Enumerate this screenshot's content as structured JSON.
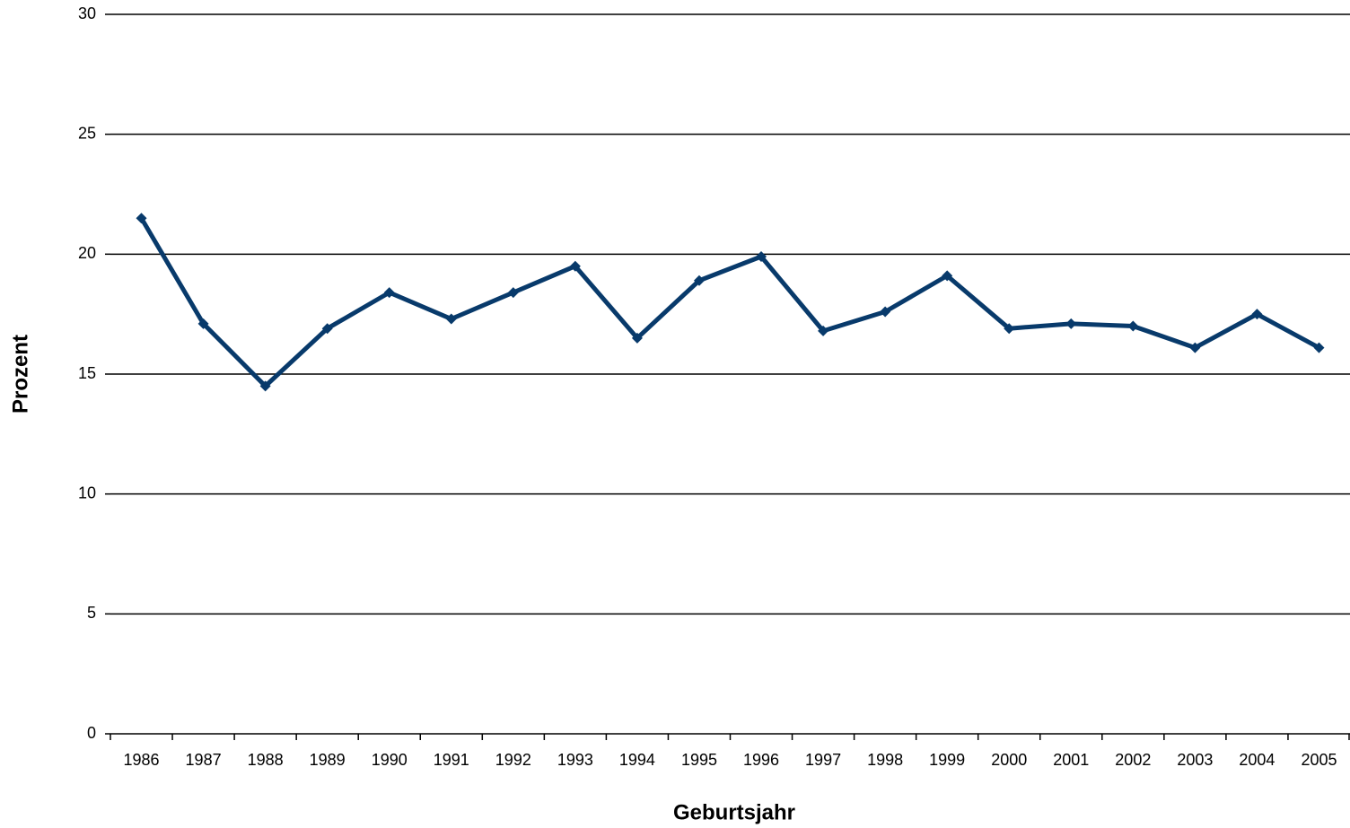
{
  "chart_data": {
    "type": "line",
    "x_label": "Geburtsjahr",
    "y_label": "Prozent",
    "categories": [
      "1986",
      "1987",
      "1988",
      "1989",
      "1990",
      "1991",
      "1992",
      "1993",
      "1994",
      "1995",
      "1996",
      "1997",
      "1998",
      "1999",
      "2000",
      "2001",
      "2002",
      "2003",
      "2004",
      "2005"
    ],
    "series": [
      {
        "color": "#083a6b",
        "values": [
          21.5,
          17.1,
          14.5,
          16.9,
          18.4,
          17.3,
          18.4,
          19.5,
          16.5,
          18.9,
          19.9,
          16.8,
          17.6,
          19.1,
          16.9,
          17.1,
          17.0,
          16.1,
          17.5,
          16.1
        ]
      }
    ],
    "ylim": [
      0,
      30
    ],
    "yticks": [
      0,
      5,
      10,
      15,
      20,
      25,
      30
    ],
    "grid": true,
    "markers": "diamond"
  }
}
